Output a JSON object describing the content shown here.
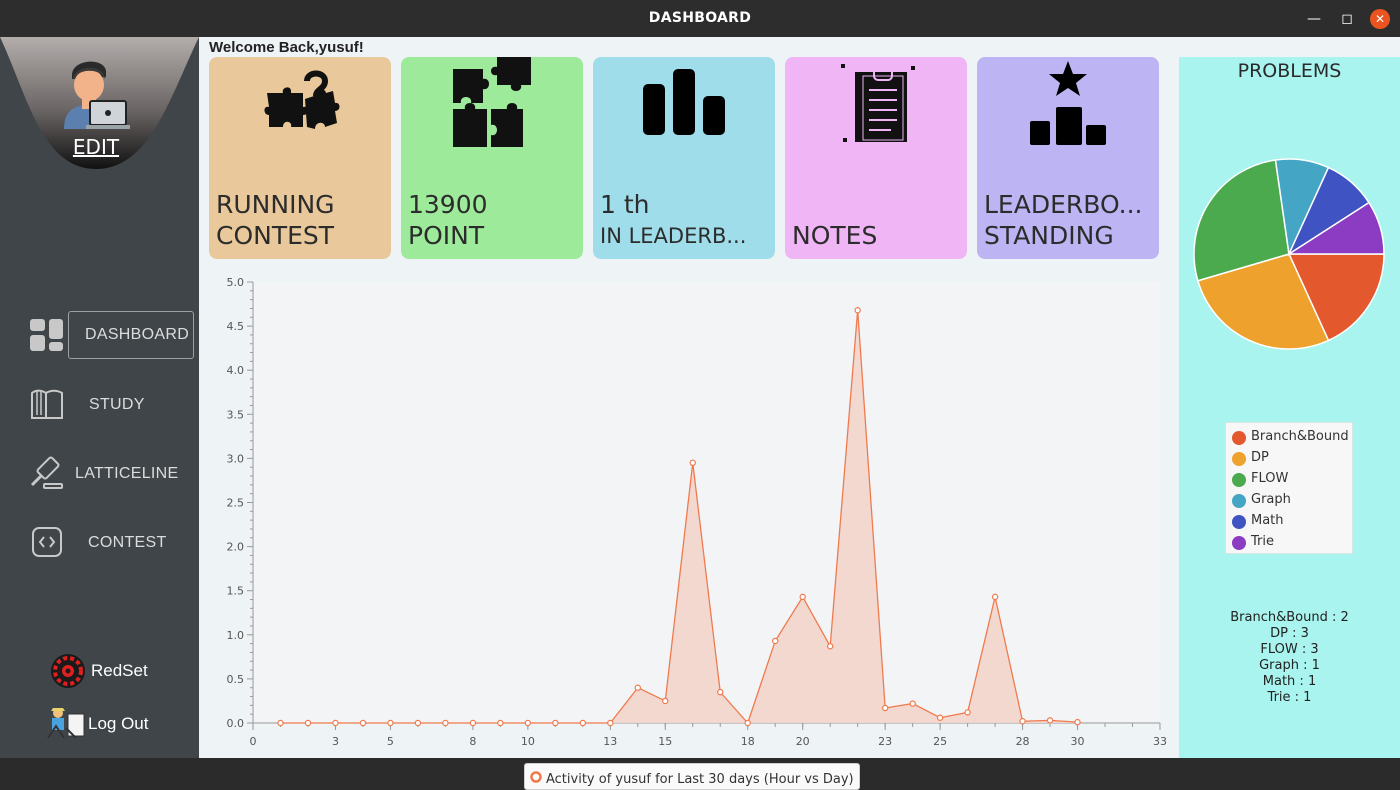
{
  "window": {
    "title": "DASHBOARD"
  },
  "sidebar": {
    "edit_label": "EDIT",
    "nav": [
      {
        "label": "DASHBOARD",
        "icon": "dashboard-grid-icon",
        "active": true
      },
      {
        "label": "STUDY",
        "icon": "book-icon"
      },
      {
        "label": "LATTICELINE",
        "icon": "gavel-icon"
      },
      {
        "label": "CONTEST",
        "icon": "code-icon"
      }
    ],
    "bottom": [
      {
        "label": "RedSet",
        "icon": "redset-gear-icon"
      },
      {
        "label": "Log Out",
        "icon": "logout-icon"
      }
    ]
  },
  "header": {
    "welcome": "Welcome Back,yusuf!"
  },
  "cards": [
    {
      "line1": "RUNNING",
      "line2": "CONTEST",
      "color": "#e9c99b",
      "icon": "puzzle-question-icon"
    },
    {
      "line1": "13900",
      "line2": "POINT",
      "color": "#9dea9b",
      "icon": "puzzle-pieces-icon"
    },
    {
      "line1": "1 th",
      "line2": "IN LEADERB...",
      "color": "#9edde9",
      "icon": "bar-chart-icon"
    },
    {
      "line1": "",
      "line2": "NOTES",
      "color": "#f0b5f4",
      "icon": "clipboard-icon"
    },
    {
      "line1": "LEADERBO...",
      "line2": "STANDING",
      "color": "#bdb5f3",
      "icon": "podium-star-icon"
    }
  ],
  "chart_data": {
    "type": "area",
    "series": [
      {
        "name": "Activity of yusuf for Last 30 days (Hour vs Day)",
        "x": [
          1,
          2,
          3,
          4,
          5,
          6,
          7,
          8,
          9,
          10,
          11,
          12,
          13,
          14,
          15,
          16,
          17,
          18,
          19,
          20,
          21,
          22,
          23,
          24,
          25,
          26,
          27,
          28,
          29,
          30
        ],
        "y": [
          0,
          0,
          0,
          0,
          0,
          0,
          0,
          0,
          0,
          0,
          0,
          0,
          0,
          0.4,
          0.25,
          2.95,
          0.35,
          0,
          0.93,
          1.43,
          0.87,
          4.68,
          0.17,
          0.22,
          0.06,
          0.12,
          1.43,
          0.02,
          0.03,
          0.01
        ]
      }
    ],
    "x_ticks": [
      0,
      3,
      5,
      8,
      10,
      13,
      15,
      18,
      20,
      23,
      25,
      28,
      30,
      33
    ],
    "y_ticks": [
      "0.0",
      "0.5",
      "1.0",
      "1.5",
      "2.0",
      "2.5",
      "3.0",
      "3.5",
      "4.0",
      "4.5",
      "5.0"
    ],
    "xlim": [
      0,
      33
    ],
    "ylim": [
      0,
      5
    ],
    "color": "#f07a4e",
    "fill": "#f3d5cc"
  },
  "problems": {
    "title": "PROBLEMS",
    "chart_data": {
      "type": "pie",
      "labels": [
        "Branch&Bound",
        "DP",
        "FLOW",
        "Graph",
        "Math",
        "Trie"
      ],
      "values": [
        2,
        3,
        3,
        1,
        1,
        1
      ],
      "colors": [
        "#e4582e",
        "#eea12c",
        "#4caa4e",
        "#44a5c5",
        "#3f54c2",
        "#8b3cc2"
      ]
    },
    "counts": [
      "Branch&Bound : 2",
      "DP : 3",
      "FLOW : 3",
      "Graph : 1",
      "Math : 1",
      "Trie : 1"
    ]
  }
}
